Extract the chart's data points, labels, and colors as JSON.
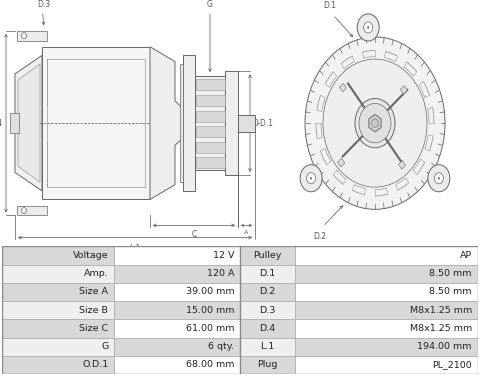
{
  "table_rows": [
    [
      "Voltage",
      "12 V",
      "Pulley",
      "AP"
    ],
    [
      "Amp.",
      "120 A",
      "D.1",
      "8.50 mm"
    ],
    [
      "Size A",
      "39.00 mm",
      "D.2",
      "8.50 mm"
    ],
    [
      "Size B",
      "15.00 mm",
      "D.3",
      "M8x1.25 mm"
    ],
    [
      "Size C",
      "61.00 mm",
      "D.4",
      "M8x1.25 mm"
    ],
    [
      "G",
      "6 qty.",
      "L.1",
      "194.00 mm"
    ],
    [
      "O.D.1",
      "68.00 mm",
      "Plug",
      "PL_2100"
    ]
  ],
  "col_bounds": [
    0.0,
    0.235,
    0.5,
    0.615,
    1.0
  ],
  "label_bg": "#d8d8d8",
  "value_bg_light": "#efefef",
  "value_bg_white": "#ffffff",
  "border_color": "#b0b0b0",
  "text_color": "#222222",
  "bg": "#ffffff",
  "lc": "#666666",
  "lc2": "#999999",
  "lc_dim": "#555555"
}
